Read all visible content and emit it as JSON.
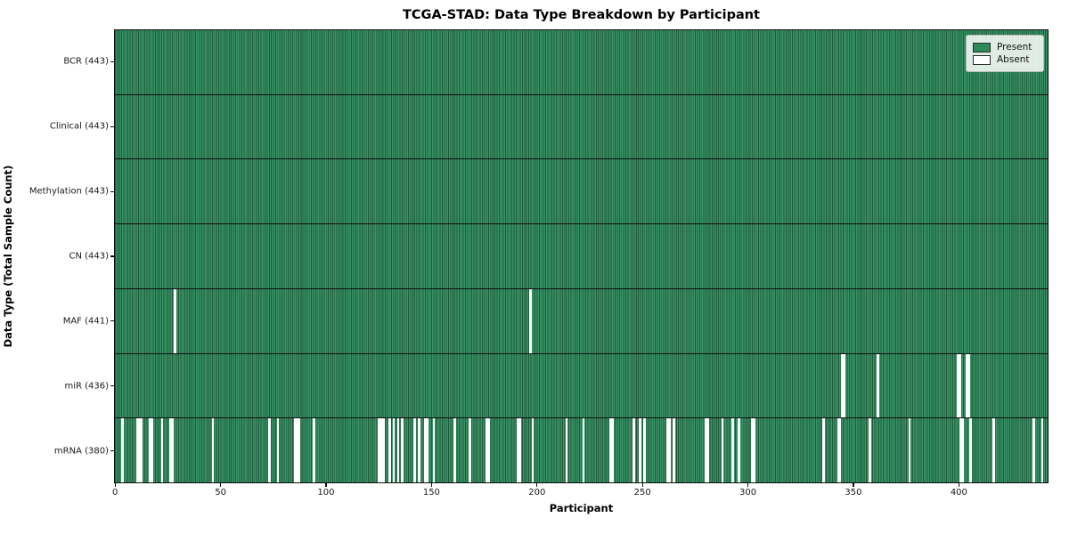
{
  "title": "TCGA-STAD: Data Type Breakdown by Participant",
  "x_axis": {
    "label": "Participant",
    "ticks": [
      0,
      50,
      100,
      150,
      200,
      250,
      300,
      350,
      400
    ]
  },
  "y_axis": {
    "label": "Data Type (Total Sample Count)"
  },
  "legend": {
    "items": [
      {
        "label": "Present",
        "color": "#2e8b57"
      },
      {
        "label": "Absent",
        "color": "#ffffff"
      }
    ]
  },
  "colors": {
    "present_fill": "#2e8b57",
    "present_stripe_light": "#3a9468",
    "present_stripe_dark": "#1d5a37",
    "absent_fill": "#ffffff",
    "spine": "#0e0e0e",
    "background": "#ffffff"
  },
  "chart_data": {
    "type": "heatmap",
    "title": "TCGA-STAD: Data Type Breakdown by Participant",
    "xlabel": "Participant",
    "ylabel": "Data Type (Total Sample Count)",
    "x_range": [
      0,
      442
    ],
    "n_participants": 443,
    "legend_position": "upper right",
    "grid": false,
    "rows": [
      {
        "label": "BCR (443)",
        "data_type": "BCR",
        "present_count": 443,
        "absent_participants": []
      },
      {
        "label": "Clinical (443)",
        "data_type": "Clinical",
        "present_count": 443,
        "absent_participants": []
      },
      {
        "label": "Methylation (443)",
        "data_type": "Methylation",
        "present_count": 443,
        "absent_participants": []
      },
      {
        "label": "CN (443)",
        "data_type": "CN",
        "present_count": 443,
        "absent_participants": []
      },
      {
        "label": "MAF (441)",
        "data_type": "MAF",
        "present_count": 441,
        "absent_participants": [
          28,
          197
        ]
      },
      {
        "label": "miR (436)",
        "data_type": "miR",
        "present_count": 436,
        "absent_participants": [
          345,
          346,
          362,
          400,
          401,
          404,
          405
        ]
      },
      {
        "label": "mRNA (380)",
        "data_type": "mRNA",
        "present_count": 380,
        "absent_participants": [
          3,
          10,
          11,
          12,
          16,
          17,
          22,
          26,
          27,
          46,
          73,
          77,
          85,
          86,
          87,
          94,
          125,
          126,
          127,
          130,
          132,
          134,
          136,
          142,
          144,
          147,
          148,
          151,
          161,
          168,
          176,
          177,
          191,
          192,
          198,
          214,
          222,
          235,
          236,
          246,
          249,
          251,
          262,
          263,
          265,
          280,
          281,
          288,
          293,
          296,
          302,
          303,
          336,
          343,
          344,
          358,
          377,
          401,
          402,
          406,
          417,
          436,
          440
        ]
      }
    ]
  }
}
